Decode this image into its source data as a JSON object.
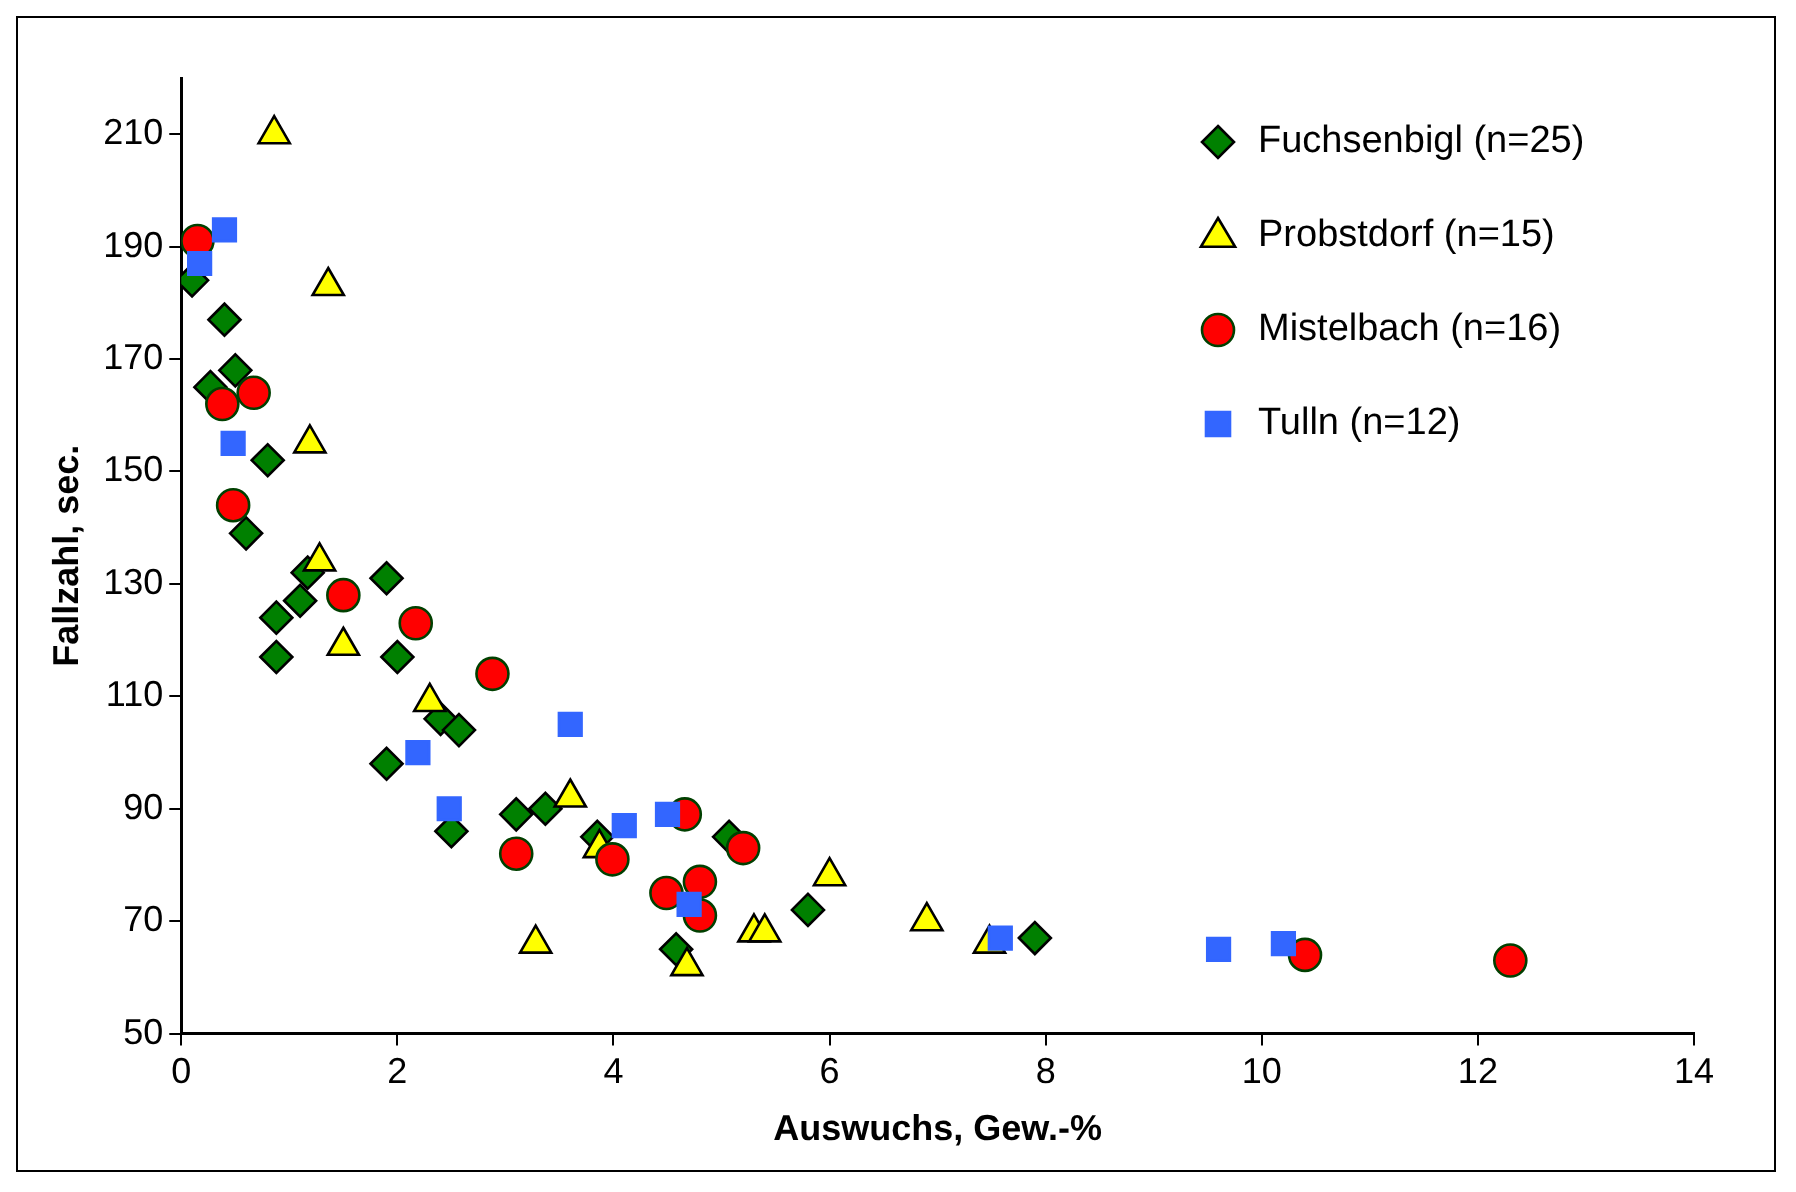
{
  "chart_data": {
    "type": "scatter",
    "xlabel": "Auswuchs, Gew.-%",
    "ylabel": "Fallzahl, sec.",
    "xlim": [
      0,
      14
    ],
    "xticks": [
      0,
      2,
      4,
      6,
      8,
      10,
      12,
      14
    ],
    "ylim": [
      50,
      220
    ],
    "yticks": [
      50,
      70,
      90,
      110,
      130,
      150,
      170,
      190,
      210
    ],
    "grid": false,
    "legend": "top right",
    "series": [
      {
        "name": "Fuchsenbigl (n=25)",
        "color": "#008000",
        "marker": "diamond",
        "x": [
          0.1,
          0.27,
          0.4,
          0.5,
          0.6,
          0.8,
          0.88,
          0.88,
          1.1,
          1.17,
          1.9,
          1.9,
          2.0,
          2.4,
          2.5,
          2.57,
          3.1,
          3.37,
          3.85,
          4.58,
          5.07,
          5.8,
          7.9
        ],
        "values": [
          184,
          165,
          177,
          168,
          139,
          152,
          124,
          117,
          127,
          132,
          131,
          98,
          117,
          106,
          86,
          104,
          89,
          90,
          85,
          65,
          85,
          72,
          67
        ]
      },
      {
        "name": "Probstdorf (n=15)",
        "color": "#ffff00",
        "marker": "triangle",
        "x": [
          0.86,
          1.19,
          1.28,
          1.36,
          1.5,
          2.3,
          3.28,
          3.6,
          3.87,
          4.68,
          5.3,
          5.4,
          6.0,
          6.9,
          7.48
        ],
        "values": [
          210,
          155,
          134,
          183,
          119,
          109,
          66,
          92,
          83,
          62,
          68,
          68,
          78,
          70,
          66
        ]
      },
      {
        "name": "Mistelbach (n=16)",
        "color": "#ff0000",
        "marker": "circle",
        "x": [
          0.15,
          0.38,
          0.48,
          0.67,
          1.5,
          2.17,
          2.88,
          3.1,
          3.99,
          4.49,
          4.66,
          4.8,
          4.8,
          5.2,
          10.4,
          12.3
        ],
        "values": [
          191,
          162,
          144,
          164,
          128,
          123,
          114,
          82,
          81,
          75,
          89,
          77,
          71,
          83,
          64,
          63
        ]
      },
      {
        "name": "Tulln (n=12)",
        "color": "#3366ff",
        "marker": "square",
        "x": [
          0.17,
          0.4,
          0.48,
          2.19,
          2.48,
          3.6,
          4.1,
          4.5,
          4.7,
          7.58,
          9.6,
          10.2
        ],
        "values": [
          187,
          193,
          155,
          100,
          90,
          105,
          87,
          89,
          73,
          67,
          65,
          66
        ]
      }
    ]
  }
}
